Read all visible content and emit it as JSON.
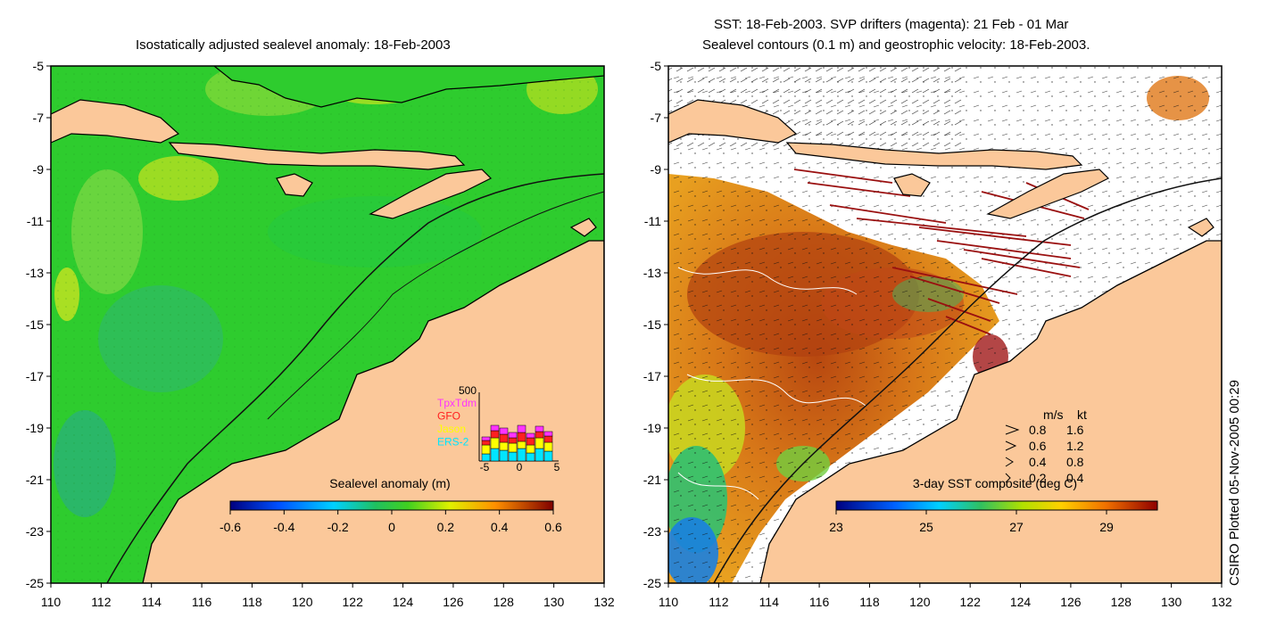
{
  "left_panel": {
    "title": "Isostatically adjusted sealevel anomaly: 18-Feb-2003",
    "colorbar": {
      "label": "Sealevel anomaly (m)",
      "ticks": [
        "-0.6",
        "-0.4",
        "-0.2",
        "0",
        "0.2",
        "0.4",
        "0.6"
      ]
    },
    "inset": {
      "ymax_label": "500",
      "legend": [
        {
          "name": "TpxTdm",
          "color": "#ff33ff"
        },
        {
          "name": "GFO",
          "color": "#ff2020"
        },
        {
          "name": "Jason",
          "color": "#ffff00"
        },
        {
          "name": "ERS-2",
          "color": "#00e5ff"
        }
      ],
      "x_ticks": [
        "-5",
        "0",
        "5"
      ]
    }
  },
  "right_panel": {
    "title_line1": "SST: 18-Feb-2003. SVP drifters (magenta): 21 Feb - 01 Mar",
    "title_line2": "Sealevel contours (0.1 m) and geostrophic velocity: 18-Feb-2003.",
    "colorbar": {
      "label": "3-day SST composite (deg C)",
      "ticks": [
        "23",
        "25",
        "27",
        "29"
      ]
    },
    "velocity_legend": {
      "header_ms": "m/s",
      "header_kt": "kt",
      "rows": [
        {
          "ms": "0.8",
          "kt": "1.6"
        },
        {
          "ms": "0.6",
          "kt": "1.2"
        },
        {
          "ms": "0.4",
          "kt": "0.8"
        },
        {
          "ms": "0.2",
          "kt": "0.4"
        }
      ]
    }
  },
  "axes": {
    "y_ticks": [
      "-5",
      "-7",
      "-9",
      "-11",
      "-13",
      "-15",
      "-17",
      "-19",
      "-21",
      "-23",
      "-25"
    ],
    "x_ticks": [
      "110",
      "112",
      "114",
      "116",
      "118",
      "120",
      "122",
      "124",
      "126",
      "128",
      "130",
      "132"
    ]
  },
  "credit": "CSIRO Plotted 05-Nov-2005 00:29",
  "colors": {
    "land": "#fbc89a",
    "ocean_green": "#2ecc2e",
    "sst_warm": "#c85a14"
  }
}
